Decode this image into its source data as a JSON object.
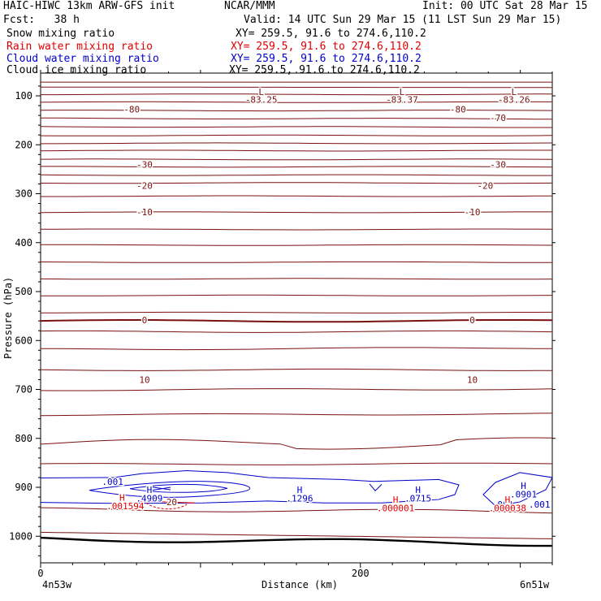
{
  "header": {
    "line1_left": "HAIC-HIWC 13km ARW-GFS init",
    "line1_mid": "NCAR/MMM",
    "line1_right": "Init: 00 UTC Sat 28 Mar 15",
    "line2_left": "Fcst:   38 h",
    "line2_right": "Valid: 14 UTC Sun 29 Mar 15 (11 LST Sun 29 Mar 15)"
  },
  "fields": [
    {
      "name": "Snow mixing ratio",
      "xy": "XY= 259.5, 91.6 to 274.6,110.2",
      "color": "#000000"
    },
    {
      "name": "Rain water mixing ratio",
      "xy": "XY= 259.5, 91.6 to 274.6,110.2",
      "color": "#e00000"
    },
    {
      "name": "Cloud water mixing ratio",
      "xy": "XY= 259.5, 91.6 to 274.6,110.2",
      "color": "#0000cc"
    },
    {
      "name": "Cloud ice mixing ratio",
      "xy": "XY= 259.5, 91.6 to 274.6,110.2",
      "color": "#000000"
    }
  ],
  "chart_data": {
    "type": "contour",
    "ylabel": "Pressure (hPa)",
    "xlabel": "Distance (km)",
    "x_left_label": "4n53w",
    "x_right_label": "6n51w",
    "xlim": [
      0,
      320
    ],
    "ylim_hpa": [
      1050,
      70
    ],
    "y_ticks": [
      100,
      200,
      300,
      400,
      500,
      600,
      700,
      800,
      900,
      1000
    ],
    "x_ticks": [
      0,
      200
    ],
    "temperature_color": "#7a1010",
    "temperature_isotherms": [
      {
        "label": "-80",
        "label_at_km": [
          57,
          261
        ]
      },
      {
        "label": "-70",
        "label_at_km": [
          286
        ]
      },
      {
        "label": "-30",
        "label_at_km": [
          65,
          286
        ]
      },
      {
        "label": "-20",
        "label_at_km": [
          65,
          278
        ]
      },
      {
        "label": "-10",
        "label_at_km": [
          65,
          270
        ]
      },
      {
        "label": "0",
        "label_at_km": [
          65,
          270
        ]
      },
      {
        "label": "10",
        "label_at_km": [
          65,
          270
        ]
      },
      {
        "label": "20",
        "label_at_km": [
          82
        ]
      }
    ],
    "temperature_minima": [
      {
        "symbol": "L",
        "value": "-83.25",
        "km": 138
      },
      {
        "symbol": "L",
        "value": "-83.37",
        "km": 226
      },
      {
        "symbol": "L",
        "value": "-83.26",
        "km": 296
      }
    ],
    "cloud_water_labels": [
      {
        "text": ".001",
        "km": 45
      },
      {
        "text": ".001",
        "km": 289
      },
      {
        "text": ".001",
        "km": 325
      }
    ],
    "cloud_water_maxima": [
      {
        "symbol": "H",
        "value": ".4909",
        "km": 68
      },
      {
        "symbol": "H",
        "value": ".1296",
        "km": 162
      },
      {
        "symbol": "H",
        "value": ".0715",
        "km": 236
      },
      {
        "symbol": "H",
        "value": ".0901",
        "km": 302
      }
    ],
    "rain_water_maxima": [
      {
        "symbol": "H",
        "value": ".001594",
        "km": 53
      },
      {
        "symbol": "H",
        "value": ".000001",
        "km": 222
      },
      {
        "symbol": "H",
        "value": ".000038",
        "km": 292
      }
    ]
  }
}
